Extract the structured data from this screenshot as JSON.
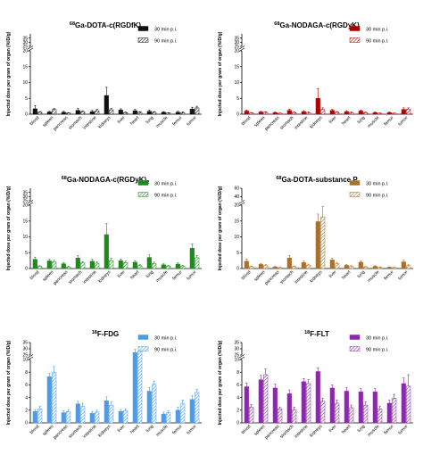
{
  "categories": [
    "blood",
    "spleen",
    "pancreas",
    "stomach",
    "intestine",
    "kidneys",
    "liver",
    "heart",
    "lung",
    "muscle",
    "femur",
    "tumor"
  ],
  "ylabel": "Injected dose per gram of organ (%ID/g)",
  "chart_data": [
    {
      "type": "bar",
      "title_sup": "68",
      "title": "Ga-DOTA-c(RGDfK)",
      "color": "#111111",
      "yaxis": {
        "lower_ticks": [
          "0",
          "5",
          "10",
          "15",
          "20"
        ],
        "upper_ticks": [
          "25",
          "30",
          "35"
        ],
        "lower_range": [
          0,
          20
        ],
        "upper_range": [
          25,
          40
        ]
      },
      "series": [
        {
          "name": "30 min p.i.",
          "values": [
            1.7,
            0.7,
            0.6,
            1.2,
            0.8,
            5.9,
            1.3,
            1.1,
            0.9,
            0.6,
            0.6,
            1.6
          ],
          "errors": [
            1.0,
            0.2,
            0.3,
            0.6,
            0.4,
            2.6,
            0.4,
            0.4,
            0.4,
            0.2,
            0.3,
            0.6
          ]
        },
        {
          "name": "90 min p.i.",
          "values": [
            0.6,
            1.5,
            0.4,
            0.8,
            1.1,
            1.4,
            0.5,
            0.6,
            0.6,
            0.4,
            0.5,
            2.0
          ],
          "errors": [
            0.2,
            0.3,
            0.1,
            0.2,
            0.4,
            0.4,
            0.2,
            0.2,
            0.2,
            0.1,
            0.2,
            0.5
          ]
        }
      ]
    },
    {
      "type": "bar",
      "title_sup": "68",
      "title": "Ga-NODAGA-c(RGDyK)",
      "color": "#b00000",
      "yaxis": {
        "lower_ticks": [
          "0",
          "5",
          "10",
          "15",
          "20"
        ],
        "upper_ticks": [
          "25",
          "30",
          "35"
        ],
        "lower_range": [
          0,
          20
        ],
        "upper_range": [
          25,
          40
        ]
      },
      "series": [
        {
          "name": "30 min p.i.",
          "values": [
            1.0,
            0.7,
            0.5,
            1.2,
            0.8,
            5.0,
            1.2,
            0.8,
            1.0,
            0.5,
            0.5,
            1.5
          ],
          "errors": [
            0.3,
            0.2,
            0.2,
            0.4,
            0.3,
            3.1,
            0.3,
            0.3,
            0.3,
            0.2,
            0.2,
            0.5
          ]
        },
        {
          "name": "90 min p.i.",
          "values": [
            0.4,
            0.6,
            0.3,
            0.5,
            0.5,
            1.5,
            0.6,
            0.5,
            0.5,
            0.3,
            0.3,
            1.6
          ],
          "errors": [
            0.1,
            0.2,
            0.1,
            0.2,
            0.2,
            0.5,
            0.2,
            0.2,
            0.2,
            0.1,
            0.1,
            0.4
          ]
        }
      ]
    },
    {
      "type": "bar",
      "title_sup": "68",
      "title": "Ga-NODAGA-c(RGDyK)",
      "title_sub": "2",
      "color": "#1a8c1a",
      "yaxis": {
        "lower_ticks": [
          "0",
          "5",
          "10",
          "15",
          "20"
        ],
        "upper_ticks": [
          "25",
          "30",
          "35"
        ],
        "lower_range": [
          0,
          20
        ],
        "upper_range": [
          25,
          40
        ]
      },
      "series": [
        {
          "name": "30 min p.i.",
          "values": [
            2.9,
            2.4,
            1.5,
            3.3,
            2.3,
            10.7,
            2.5,
            2.0,
            3.5,
            1.2,
            1.4,
            6.4
          ],
          "errors": [
            0.7,
            0.5,
            0.4,
            0.8,
            0.6,
            3.5,
            0.5,
            0.5,
            0.8,
            0.3,
            0.4,
            1.3
          ]
        },
        {
          "name": "90 min p.i.",
          "values": [
            0.7,
            2.1,
            0.5,
            1.8,
            1.7,
            2.5,
            1.9,
            0.9,
            1.6,
            0.8,
            0.8,
            3.4
          ],
          "errors": [
            0.2,
            0.5,
            0.2,
            0.4,
            0.4,
            0.7,
            0.4,
            0.3,
            0.4,
            0.2,
            0.2,
            0.7
          ]
        }
      ]
    },
    {
      "type": "bar",
      "title_sup": "68",
      "title": "Ga-DOTA-substance P",
      "color": "#a8702a",
      "yaxis": {
        "lower_ticks": [
          "0",
          "5",
          "10",
          "15",
          "20"
        ],
        "upper_ticks": [
          "40",
          "60"
        ],
        "lower_range": [
          0,
          20
        ],
        "upper_range": [
          30,
          60
        ]
      },
      "series": [
        {
          "name": "30 min p.i.",
          "values": [
            2.3,
            1.3,
            0.5,
            3.3,
            1.9,
            14.8,
            2.7,
            1.0,
            2.0,
            0.7,
            0.4,
            2.1
          ],
          "errors": [
            0.7,
            0.3,
            0.2,
            0.8,
            0.5,
            2.4,
            0.5,
            0.3,
            0.5,
            0.2,
            0.1,
            0.5
          ]
        },
        {
          "name": "90 min p.i.",
          "values": [
            0.6,
            0.9,
            0.3,
            0.6,
            1.1,
            16.3,
            1.5,
            0.7,
            0.5,
            0.4,
            0.3,
            0.9
          ],
          "errors": [
            0.2,
            0.3,
            0.1,
            0.2,
            0.3,
            3.3,
            0.4,
            0.2,
            0.2,
            0.1,
            0.1,
            0.3
          ]
        }
      ]
    },
    {
      "type": "bar",
      "title_sup": "18",
      "title": "F-FDG",
      "color": "#4b9be8",
      "yaxis": {
        "lower_ticks": [
          "0",
          "2",
          "4",
          "6",
          "8",
          "10"
        ],
        "upper_ticks": [
          "25",
          "30",
          "35"
        ],
        "lower_range": [
          0,
          10
        ],
        "upper_range": [
          25,
          35
        ]
      },
      "series": [
        {
          "name": "30 min p.i.",
          "values": [
            1.8,
            7.3,
            1.6,
            3.0,
            1.5,
            3.5,
            1.8,
            27.0,
            5.0,
            1.4,
            2.0,
            3.7
          ],
          "errors": [
            0.3,
            0.5,
            0.3,
            0.4,
            0.3,
            0.6,
            0.3,
            2.5,
            0.6,
            0.3,
            0.5,
            0.6
          ]
        },
        {
          "name": "90 min p.i.",
          "values": [
            2.2,
            8.0,
            1.8,
            2.6,
            1.7,
            2.8,
            1.9,
            28.0,
            6.1,
            1.6,
            3.0,
            4.8
          ],
          "errors": [
            0.4,
            0.9,
            0.3,
            0.5,
            0.3,
            0.5,
            0.3,
            3.0,
            0.5,
            0.3,
            0.6,
            0.5
          ]
        }
      ]
    },
    {
      "type": "bar",
      "title_sup": "18",
      "title": "F-FLT",
      "color": "#8a2aa8",
      "yaxis": {
        "lower_ticks": [
          "0",
          "2",
          "4",
          "6",
          "8",
          "10"
        ],
        "upper_ticks": [
          "25",
          "30",
          "35"
        ],
        "lower_range": [
          0,
          10
        ],
        "upper_range": [
          25,
          35
        ]
      },
      "series": [
        {
          "name": "30 min p.i.",
          "values": [
            5.7,
            6.8,
            5.5,
            4.6,
            6.5,
            8.1,
            5.5,
            5.0,
            4.9,
            4.9,
            3.1,
            6.2
          ],
          "errors": [
            0.6,
            0.7,
            0.6,
            0.6,
            0.5,
            0.6,
            0.5,
            0.6,
            0.5,
            0.5,
            0.5,
            0.9
          ]
        },
        {
          "name": "90 min p.i.",
          "values": [
            2.5,
            7.6,
            2.2,
            2.1,
            6.2,
            3.4,
            3.1,
            2.4,
            2.8,
            2.2,
            3.9,
            5.8
          ],
          "errors": [
            0.4,
            0.9,
            0.3,
            0.4,
            0.6,
            0.5,
            0.5,
            0.4,
            0.5,
            0.4,
            0.6,
            1.8
          ]
        }
      ]
    }
  ]
}
